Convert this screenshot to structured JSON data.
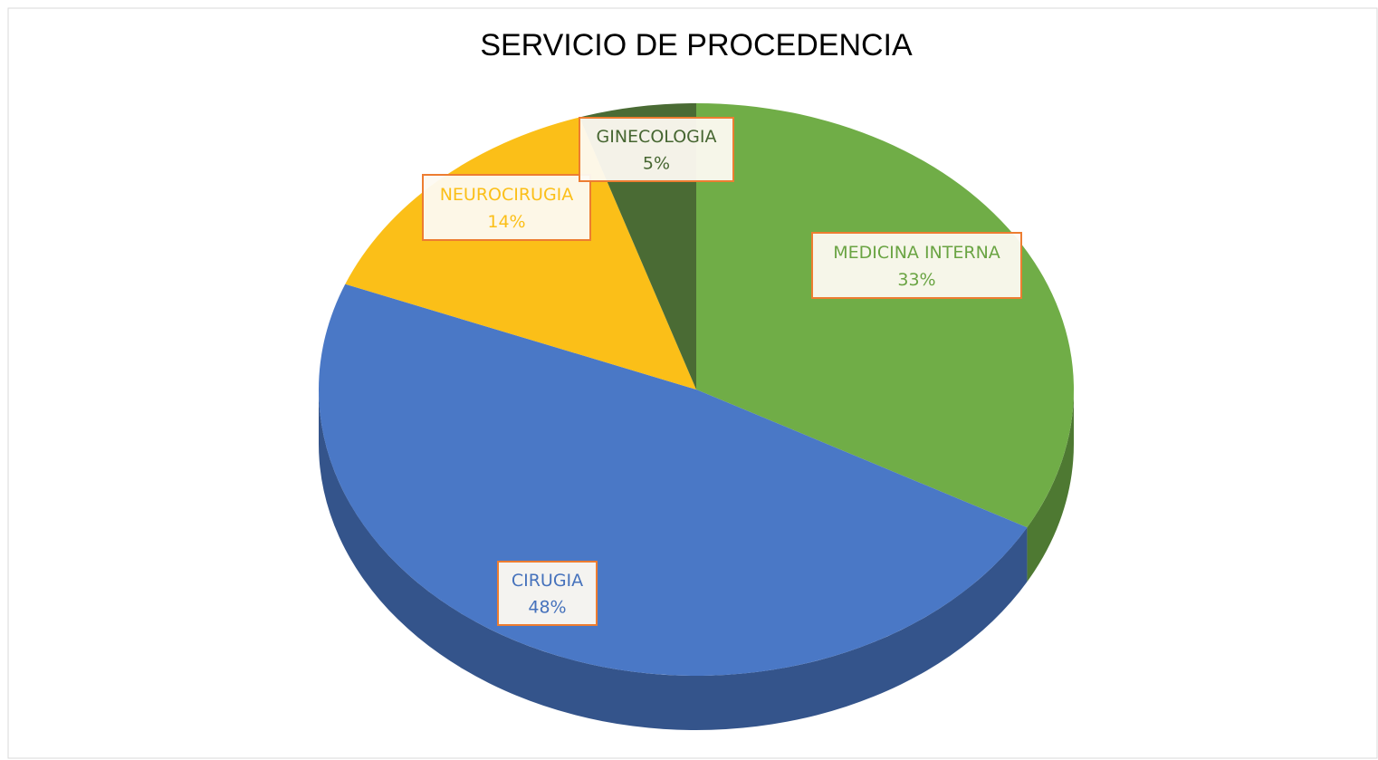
{
  "chart_data": {
    "type": "pie",
    "title": "SERVICIO DE PROCEDENCIA",
    "categories": [
      "MEDICINA INTERNA",
      "CIRUGIA",
      "NEUROCIRUGIA",
      "GINECOLOGIA"
    ],
    "values": [
      33,
      48,
      14,
      5
    ],
    "value_labels": [
      "33%",
      "48%",
      "14%",
      "5%"
    ],
    "colors": [
      "#70ad47",
      "#4a78c6",
      "#fbbf18",
      "#4a6b34"
    ]
  }
}
